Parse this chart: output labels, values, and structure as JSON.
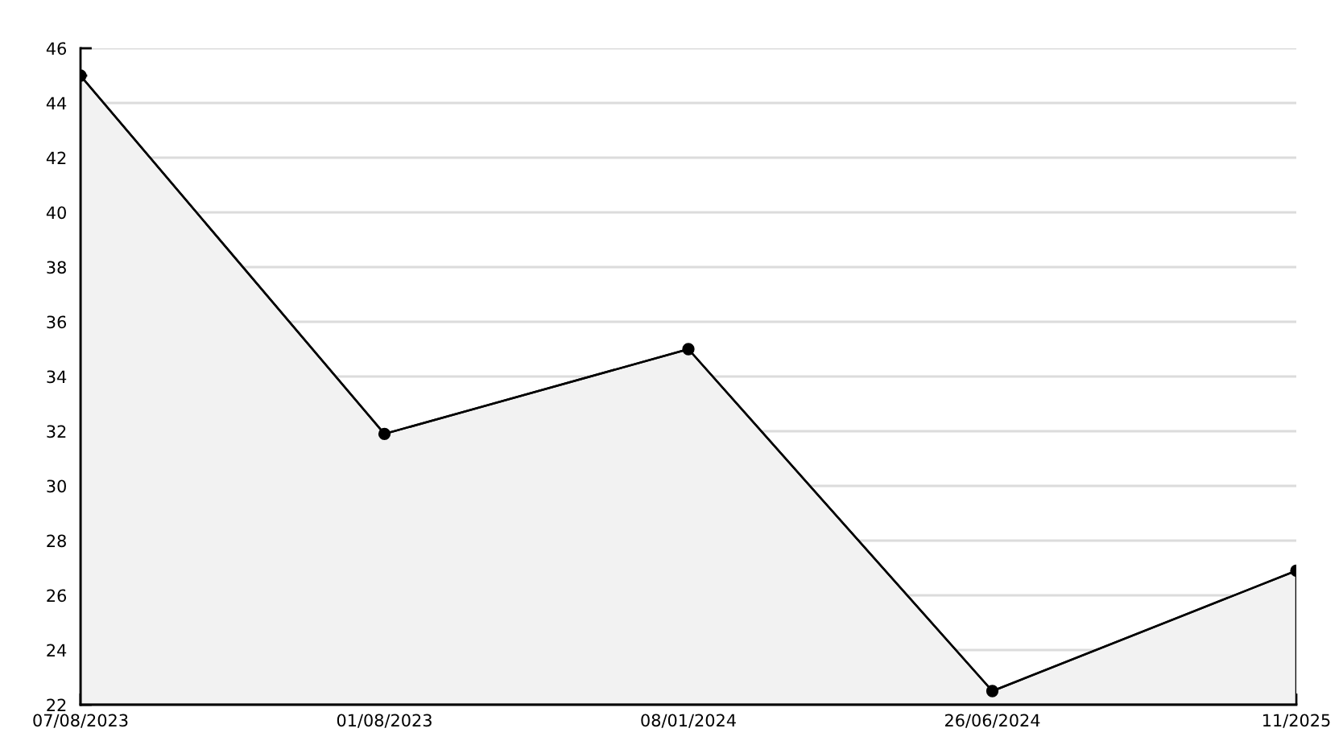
{
  "chart_data": {
    "type": "area",
    "categories": [
      "07/08/2023",
      "01/08/2023",
      "08/01/2024",
      "26/06/2024",
      "11/2025"
    ],
    "series": [
      {
        "color": "#000000",
        "values": [
          45,
          31.9,
          35,
          22.5,
          26.9
        ]
      }
    ],
    "ylim": [
      22,
      46
    ],
    "yticks": [
      22,
      24,
      26,
      28,
      30,
      32,
      34,
      36,
      38,
      40,
      42,
      44,
      46
    ],
    "grid": "y",
    "marker": "circle",
    "line_style": "solid"
  }
}
